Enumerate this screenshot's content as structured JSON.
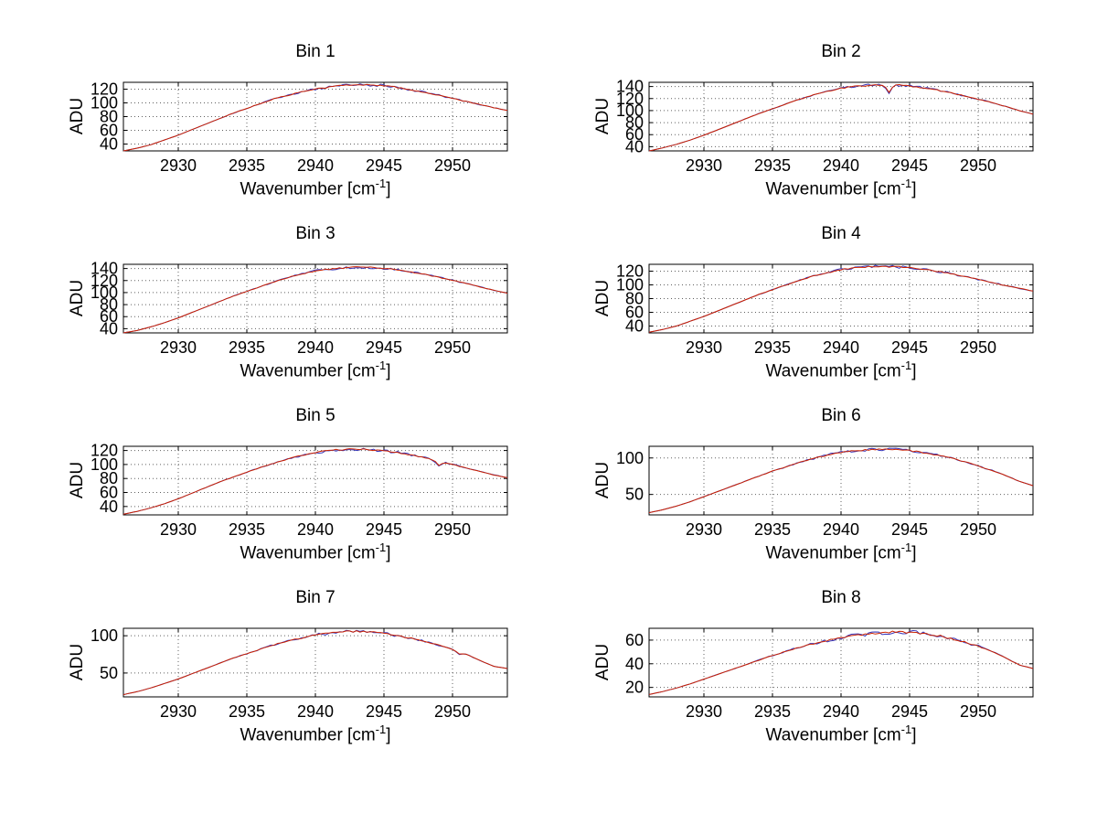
{
  "figure": {
    "background": "#ffffff"
  },
  "style": {
    "grid_color": "#606060",
    "axis_color": "#000000",
    "series": [
      {
        "name": "raw-data",
        "color": "#3535bb",
        "noise_amp": 2.3,
        "seed": 7
      },
      {
        "name": "spectrum",
        "color": "#cc2200",
        "noise_amp": 1.2,
        "seed": 3
      }
    ]
  },
  "chart_data": [
    {
      "type": "line",
      "title": "Bin 1",
      "ylabel": "ADU",
      "xlabel_main": "Wavenumber [cm",
      "xlabel_sup": "-1",
      "xlabel_end": "]",
      "xlim": [
        2926,
        2954
      ],
      "ylim": [
        30,
        130
      ],
      "xticks": [
        2930,
        2935,
        2940,
        2945,
        2950
      ],
      "yticks": [
        40,
        60,
        80,
        100,
        120
      ],
      "x_start": 2926,
      "x_step": 1,
      "values": [
        30,
        34,
        39,
        46,
        53,
        61,
        69,
        77,
        85,
        92,
        99,
        106,
        111,
        116,
        120,
        123,
        125.5,
        127,
        126.5,
        125,
        122.5,
        119,
        115,
        111,
        106.5,
        102,
        97.5,
        93,
        89
      ],
      "spikes": []
    },
    {
      "type": "line",
      "title": "Bin 2",
      "ylabel": "ADU",
      "xlabel_main": "Wavenumber [cm",
      "xlabel_sup": "-1",
      "xlabel_end": "]",
      "xlim": [
        2926,
        2954
      ],
      "ylim": [
        33,
        147
      ],
      "xticks": [
        2930,
        2935,
        2940,
        2945,
        2950
      ],
      "yticks": [
        40,
        60,
        80,
        100,
        120,
        140
      ],
      "x_start": 2926,
      "x_step": 1,
      "values": [
        33,
        38,
        44,
        51,
        59,
        68,
        77,
        86,
        95,
        103,
        111,
        119,
        126,
        132,
        137,
        140,
        142,
        143,
        142.5,
        141,
        138,
        134,
        129.5,
        124.5,
        119,
        113.5,
        107,
        100,
        94
      ],
      "spikes": [
        {
          "x": 2943.5,
          "dy": -13
        }
      ]
    },
    {
      "type": "line",
      "title": "Bin 3",
      "ylabel": "ADU",
      "xlabel_main": "Wavenumber [cm",
      "xlabel_sup": "-1",
      "xlabel_end": "]",
      "xlim": [
        2926,
        2954
      ],
      "ylim": [
        33,
        147
      ],
      "xticks": [
        2930,
        2935,
        2940,
        2945,
        2950
      ],
      "yticks": [
        40,
        60,
        80,
        100,
        120,
        140
      ],
      "x_start": 2926,
      "x_step": 1,
      "values": [
        33,
        37,
        43,
        50,
        58,
        67,
        76,
        85,
        94,
        102,
        110,
        118,
        125,
        131,
        136,
        139,
        141,
        142,
        141.5,
        140,
        137.5,
        134,
        130,
        125.5,
        120.5,
        115,
        109.5,
        104,
        99
      ],
      "spikes": []
    },
    {
      "type": "line",
      "title": "Bin 4",
      "ylabel": "ADU",
      "xlabel_main": "Wavenumber [cm",
      "xlabel_sup": "-1",
      "xlabel_end": "]",
      "xlim": [
        2926,
        2954
      ],
      "ylim": [
        30,
        130
      ],
      "xticks": [
        2930,
        2935,
        2940,
        2945,
        2950
      ],
      "yticks": [
        40,
        60,
        80,
        100,
        120
      ],
      "x_start": 2926,
      "x_step": 1,
      "values": [
        31,
        35,
        40,
        47,
        54,
        62,
        70,
        78,
        86,
        93,
        100,
        107,
        113,
        118,
        122,
        125,
        126.5,
        127,
        126.5,
        125,
        123,
        120,
        116.5,
        112.5,
        108,
        103.5,
        99,
        95,
        91
      ],
      "spikes": []
    },
    {
      "type": "line",
      "title": "Bin 5",
      "ylabel": "ADU",
      "xlabel_main": "Wavenumber [cm",
      "xlabel_sup": "-1",
      "xlabel_end": "]",
      "xlim": [
        2926,
        2954
      ],
      "ylim": [
        28,
        126
      ],
      "xticks": [
        2930,
        2935,
        2940,
        2945,
        2950
      ],
      "yticks": [
        40,
        60,
        80,
        100,
        120
      ],
      "x_start": 2926,
      "x_step": 1,
      "values": [
        29,
        33,
        38,
        44,
        51,
        59,
        67,
        75,
        82,
        89,
        96,
        102,
        108,
        113,
        117,
        120,
        121.5,
        122,
        121,
        119.5,
        117,
        113.5,
        109.5,
        105,
        100,
        95,
        90,
        85,
        81
      ],
      "spikes": [
        {
          "x": 2949,
          "dy": -6
        }
      ]
    },
    {
      "type": "line",
      "title": "Bin 6",
      "ylabel": "ADU",
      "xlabel_main": "Wavenumber [cm",
      "xlabel_sup": "-1",
      "xlabel_end": "]",
      "xlim": [
        2926,
        2954
      ],
      "ylim": [
        22,
        116
      ],
      "xticks": [
        2930,
        2935,
        2940,
        2945,
        2950
      ],
      "yticks": [
        50,
        100
      ],
      "x_start": 2926,
      "x_step": 1,
      "values": [
        25,
        29,
        34,
        40,
        47,
        54,
        61,
        68,
        75,
        82,
        88,
        94,
        99,
        104,
        107.5,
        110,
        111.5,
        112,
        111.5,
        110,
        107.5,
        104,
        100,
        95,
        89,
        83,
        76,
        68,
        62
      ],
      "spikes": []
    },
    {
      "type": "line",
      "title": "Bin 7",
      "ylabel": "ADU",
      "xlabel_main": "Wavenumber [cm",
      "xlabel_sup": "-1",
      "xlabel_end": "]",
      "xlim": [
        2926,
        2954
      ],
      "ylim": [
        18,
        110
      ],
      "xticks": [
        2930,
        2935,
        2940,
        2945,
        2950
      ],
      "yticks": [
        50,
        100
      ],
      "x_start": 2926,
      "x_step": 1,
      "values": [
        21,
        25,
        30,
        36,
        42,
        49,
        56,
        63,
        70,
        76,
        82,
        88,
        93,
        97,
        101,
        103.5,
        105.5,
        106,
        105,
        103,
        100,
        96.5,
        92.5,
        87.5,
        81.5,
        75,
        67,
        59,
        56
      ],
      "spikes": [
        {
          "x": 2950.5,
          "dy": -3
        }
      ]
    },
    {
      "type": "line",
      "title": "Bin 8",
      "ylabel": "ADU",
      "xlabel_main": "Wavenumber [cm",
      "xlabel_sup": "-1",
      "xlabel_end": "]",
      "xlim": [
        2926,
        2954
      ],
      "ylim": [
        12,
        70
      ],
      "xticks": [
        2930,
        2935,
        2940,
        2945,
        2950
      ],
      "yticks": [
        20,
        40,
        60
      ],
      "x_start": 2926,
      "x_step": 1,
      "values": [
        14,
        16.5,
        19.5,
        23,
        27,
        31,
        35,
        39,
        43,
        47,
        50.5,
        54,
        57,
        59.5,
        62,
        64,
        65.5,
        66.5,
        67,
        66.5,
        65.5,
        64,
        61.5,
        58.5,
        55,
        50.5,
        45,
        39,
        36
      ],
      "spikes": []
    }
  ]
}
